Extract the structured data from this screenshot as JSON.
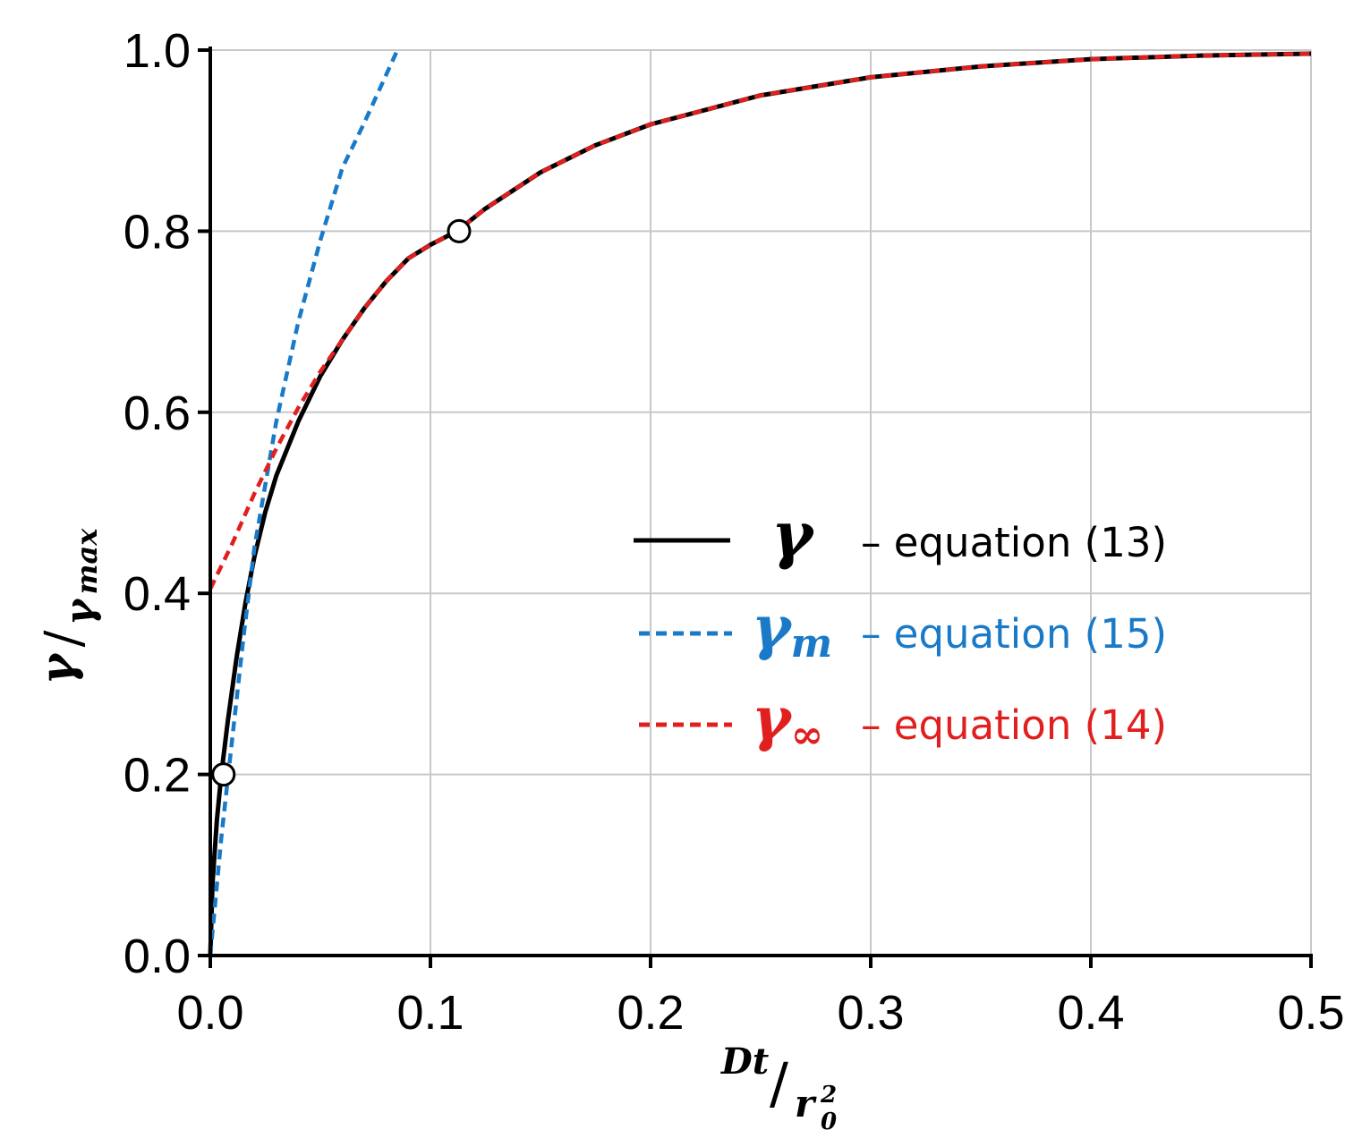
{
  "chart_data": {
    "type": "line",
    "xlim": [
      0,
      0.5
    ],
    "ylim": [
      0,
      1.0
    ],
    "grid": true,
    "legend_position": "center-right",
    "x_ticks": [
      "0.0",
      "0.1",
      "0.2",
      "0.3",
      "0.4",
      "0.5"
    ],
    "y_ticks": [
      "0.0",
      "0.2",
      "0.4",
      "0.6",
      "0.8",
      "1.0"
    ],
    "xlabel": {
      "numerator": "Dt",
      "slash": "/",
      "denominator": "r",
      "denominator_sup": "2",
      "denominator_sub": "0"
    },
    "ylabel": {
      "numerator": "γ",
      "slash": "/",
      "denominator": "γ",
      "denominator_sub": "max"
    },
    "series": [
      {
        "symbol": "γ",
        "subscript": "",
        "label": "– equation (13)",
        "color": "#000000",
        "style": "solid",
        "x": [
          0.0,
          0.001,
          0.003,
          0.005,
          0.008,
          0.012,
          0.016,
          0.02,
          0.025,
          0.03,
          0.035,
          0.04,
          0.05,
          0.06,
          0.07,
          0.08,
          0.09,
          0.1,
          0.112,
          0.125,
          0.15,
          0.175,
          0.2,
          0.25,
          0.3,
          0.35,
          0.4,
          0.45,
          0.5
        ],
        "y": [
          0.0,
          0.08,
          0.15,
          0.2,
          0.26,
          0.33,
          0.39,
          0.44,
          0.49,
          0.53,
          0.56,
          0.59,
          0.64,
          0.68,
          0.715,
          0.745,
          0.77,
          0.785,
          0.8,
          0.825,
          0.865,
          0.895,
          0.918,
          0.95,
          0.97,
          0.982,
          0.99,
          0.994,
          0.996
        ]
      },
      {
        "symbol": "γ",
        "subscript": "m",
        "label": "– equation (15)",
        "color": "#1a7ac7",
        "style": "dashed",
        "x": [
          0.0,
          0.005,
          0.01,
          0.015,
          0.02,
          0.03,
          0.04,
          0.05,
          0.06,
          0.07,
          0.085
        ],
        "y": [
          0.0,
          0.13,
          0.24,
          0.35,
          0.45,
          0.59,
          0.7,
          0.79,
          0.87,
          0.92,
          1.0
        ]
      },
      {
        "symbol": "γ",
        "subscript": "∞",
        "label": "– equation (14)",
        "color": "#e0201f",
        "style": "dashed",
        "x": [
          0.0,
          0.01,
          0.02,
          0.03,
          0.04,
          0.05,
          0.06,
          0.07,
          0.08,
          0.09,
          0.1,
          0.112,
          0.125,
          0.15,
          0.175,
          0.2,
          0.25,
          0.3,
          0.35,
          0.4,
          0.45,
          0.5
        ],
        "y": [
          0.405,
          0.455,
          0.51,
          0.56,
          0.605,
          0.645,
          0.68,
          0.715,
          0.745,
          0.77,
          0.785,
          0.8,
          0.825,
          0.865,
          0.895,
          0.918,
          0.95,
          0.97,
          0.982,
          0.99,
          0.994,
          0.996
        ]
      }
    ],
    "markers": [
      {
        "x": 0.006,
        "y": 0.2
      },
      {
        "x": 0.113,
        "y": 0.8
      }
    ]
  }
}
